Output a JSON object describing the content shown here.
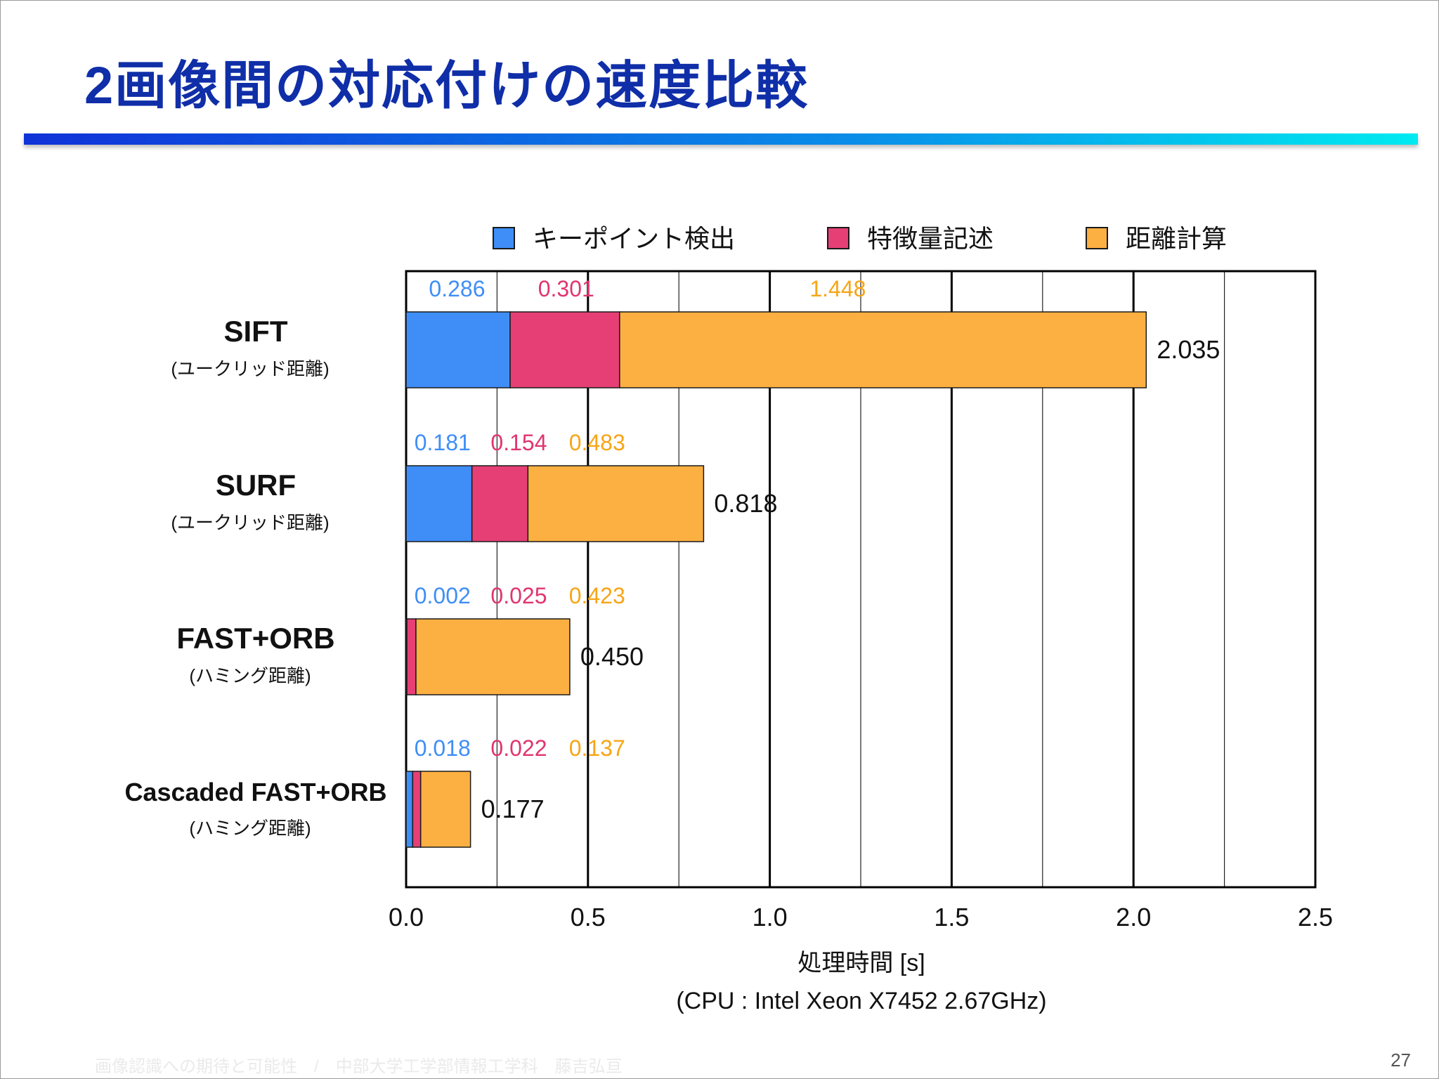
{
  "slide": {
    "title": "2画像間の対応付けの速度比較",
    "footer": "画像認識への期待と可能性　/　中部大学工学部情報工学科　藤吉弘亘",
    "page_number": "27"
  },
  "colors": {
    "title": "#0f2ea8",
    "keypoint": "#3f8ef7",
    "descriptor": "#e63f76",
    "distance": "#fdb042",
    "keypoint_label": "#3f8ef7",
    "descriptor_label": "#e0356f",
    "distance_label": "#f7a516"
  },
  "chart_data": {
    "type": "bar",
    "orientation": "horizontal",
    "stacked": true,
    "categories": [
      "SIFT",
      "SURF",
      "FAST+ORB",
      "Cascaded FAST+ORB"
    ],
    "category_sublabels": [
      "(ユークリッド距離)",
      "(ユークリッド距離)",
      "(ハミング距離)",
      "(ハミング距離)"
    ],
    "series": [
      {
        "name": "キーポイント検出",
        "values": [
          0.286,
          0.181,
          0.002,
          0.018
        ],
        "labels": [
          "0.286",
          "0.181",
          "0.002",
          "0.018"
        ]
      },
      {
        "name": "特徴量記述",
        "values": [
          0.301,
          0.154,
          0.025,
          0.022
        ],
        "labels": [
          "0.301",
          "0.154",
          "0.025",
          "0.022"
        ]
      },
      {
        "name": "距離計算",
        "values": [
          1.448,
          0.483,
          0.423,
          0.137
        ],
        "labels": [
          "1.448",
          "0.483",
          "0.423",
          "0.137"
        ]
      }
    ],
    "totals": [
      "2.035",
      "0.818",
      "0.450",
      "0.177"
    ],
    "total_values": [
      2.035,
      0.818,
      0.45,
      0.177
    ],
    "xlabel": "処理時間 [s]",
    "xlabel_note": "(CPU : Intel Xeon X7452 2.67GHz)",
    "xlim": [
      0,
      2.5
    ],
    "xticks": [
      0.0,
      0.5,
      1.0,
      1.5,
      2.0,
      2.5
    ],
    "xtick_labels": [
      "0.0",
      "0.5",
      "1.0",
      "1.5",
      "2.0",
      "2.5"
    ],
    "minor_grid": [
      0.25,
      0.75,
      1.25,
      1.75,
      2.25
    ],
    "grid": true,
    "legend_position": "top"
  }
}
